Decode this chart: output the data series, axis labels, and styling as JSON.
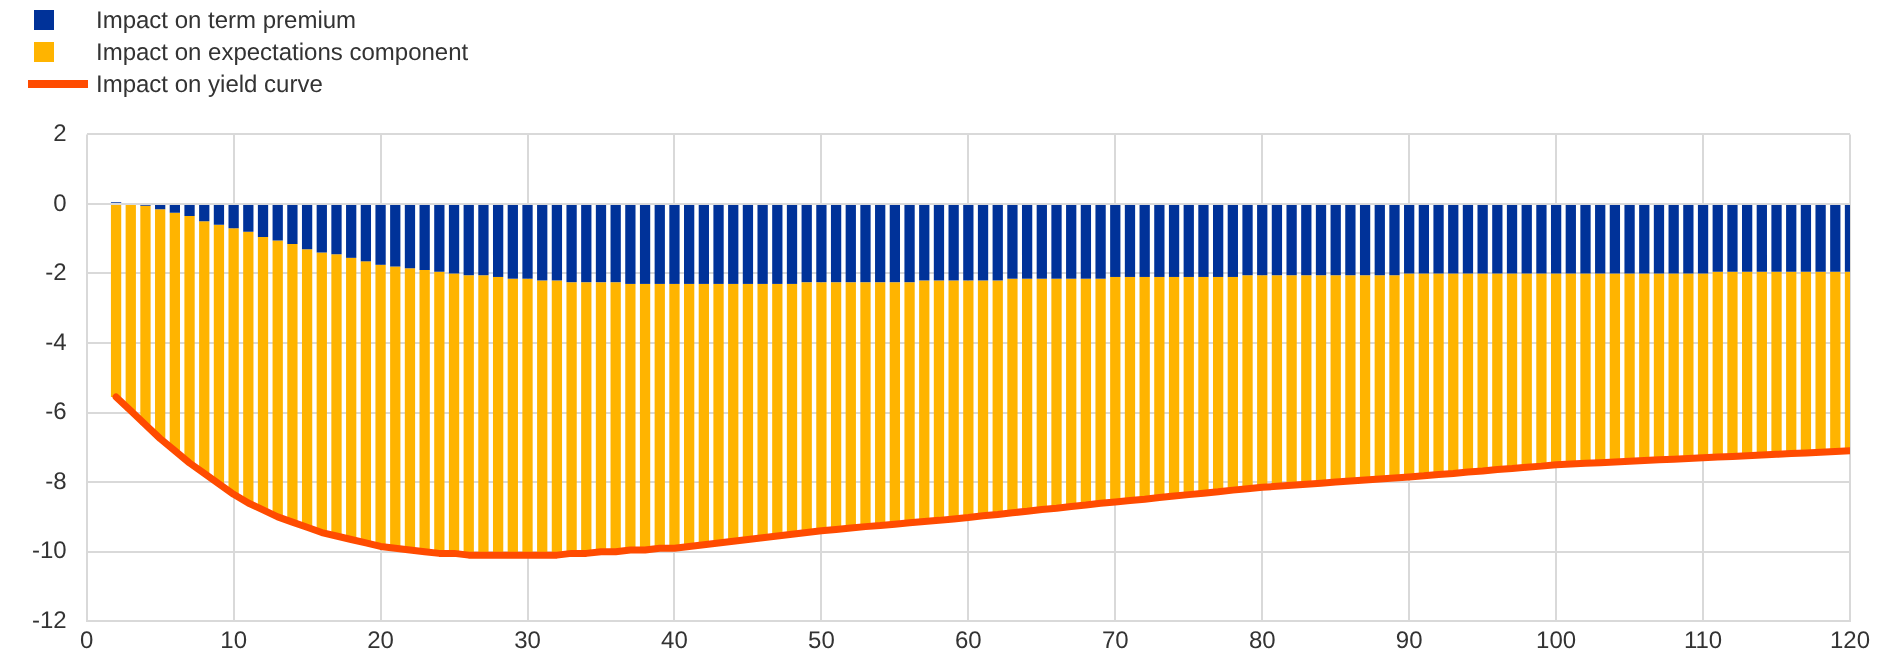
{
  "chart_data": {
    "type": "bar",
    "stacked": true,
    "legend": "top left",
    "grid": true,
    "marker": "none",
    "xlim": [
      0,
      120
    ],
    "xticks": [
      0,
      10,
      20,
      30,
      40,
      50,
      60,
      70,
      80,
      90,
      100,
      110,
      120
    ],
    "ylim": [
      -12,
      2
    ],
    "yticks": [
      -12,
      -10,
      -8,
      -6,
      -4,
      -2,
      0,
      2
    ],
    "x": [
      2,
      3,
      4,
      5,
      6,
      7,
      8,
      9,
      10,
      11,
      12,
      13,
      14,
      15,
      16,
      17,
      18,
      19,
      20,
      21,
      22,
      23,
      24,
      25,
      26,
      27,
      28,
      29,
      30,
      31,
      32,
      33,
      34,
      35,
      36,
      37,
      38,
      39,
      40,
      41,
      42,
      43,
      44,
      45,
      46,
      47,
      48,
      49,
      50,
      51,
      52,
      53,
      54,
      55,
      56,
      57,
      58,
      59,
      60,
      61,
      62,
      63,
      64,
      65,
      66,
      67,
      68,
      69,
      70,
      71,
      72,
      73,
      74,
      75,
      76,
      77,
      78,
      79,
      80,
      81,
      82,
      83,
      84,
      85,
      86,
      87,
      88,
      89,
      90,
      91,
      92,
      93,
      94,
      95,
      96,
      97,
      98,
      99,
      100,
      101,
      102,
      103,
      104,
      105,
      106,
      107,
      108,
      109,
      110,
      111,
      112,
      113,
      114,
      115,
      116,
      117,
      118,
      119,
      120
    ],
    "series": [
      {
        "name": "Impact on term premium",
        "color": "#003299",
        "values": [
          0.05,
          0,
          -0.05,
          -0.15,
          -0.25,
          -0.35,
          -0.5,
          -0.6,
          -0.7,
          -0.8,
          -0.95,
          -1.05,
          -1.15,
          -1.3,
          -1.4,
          -1.45,
          -1.55,
          -1.65,
          -1.75,
          -1.8,
          -1.85,
          -1.9,
          -1.95,
          -2.0,
          -2.05,
          -2.05,
          -2.1,
          -2.15,
          -2.15,
          -2.2,
          -2.2,
          -2.25,
          -2.25,
          -2.25,
          -2.25,
          -2.3,
          -2.3,
          -2.3,
          -2.3,
          -2.3,
          -2.3,
          -2.3,
          -2.3,
          -2.3,
          -2.3,
          -2.3,
          -2.3,
          -2.25,
          -2.25,
          -2.25,
          -2.25,
          -2.25,
          -2.25,
          -2.25,
          -2.25,
          -2.2,
          -2.2,
          -2.2,
          -2.2,
          -2.2,
          -2.2,
          -2.15,
          -2.15,
          -2.15,
          -2.15,
          -2.15,
          -2.15,
          -2.15,
          -2.1,
          -2.1,
          -2.1,
          -2.1,
          -2.1,
          -2.1,
          -2.1,
          -2.1,
          -2.1,
          -2.05,
          -2.05,
          -2.05,
          -2.05,
          -2.05,
          -2.05,
          -2.05,
          -2.05,
          -2.05,
          -2.05,
          -2.05,
          -2.0,
          -2.0,
          -2.0,
          -2.0,
          -2.0,
          -2.0,
          -2.0,
          -2.0,
          -2.0,
          -2.0,
          -2.0,
          -2.0,
          -2.0,
          -2.0,
          -2.0,
          -2.0,
          -2.0,
          -2.0,
          -2.0,
          -2.0,
          -2.0,
          -1.95,
          -1.95,
          -1.95,
          -1.95,
          -1.95,
          -1.95,
          -1.95,
          -1.95,
          -1.95,
          -1.95
        ]
      },
      {
        "name": "Impact on expectations component",
        "color": "#ffb400",
        "values": [
          -5.55,
          -5.95,
          -6.3,
          -6.6,
          -6.85,
          -7.1,
          -7.25,
          -7.45,
          -7.65,
          -7.8,
          -7.85,
          -7.95,
          -8.0,
          -8.0,
          -8.05,
          -8.1,
          -8.1,
          -8.1,
          -8.1,
          -8.1,
          -8.1,
          -8.1,
          -8.1,
          -8.05,
          -8.05,
          -8.05,
          -8.0,
          -7.95,
          -7.95,
          -7.9,
          -7.9,
          -7.8,
          -7.8,
          -7.75,
          -7.75,
          -7.65,
          -7.65,
          -7.6,
          -7.6,
          -7.55,
          -7.5,
          -7.45,
          -7.4,
          -7.35,
          -7.3,
          -7.25,
          -7.2,
          -7.2,
          -7.15,
          -7.11,
          -7.07,
          -7.03,
          -7.0,
          -6.96,
          -6.92,
          -6.93,
          -6.9,
          -6.86,
          -6.82,
          -6.77,
          -6.73,
          -6.73,
          -6.69,
          -6.64,
          -6.6,
          -6.55,
          -6.51,
          -6.46,
          -6.47,
          -6.43,
          -6.39,
          -6.34,
          -6.3,
          -6.26,
          -6.22,
          -6.18,
          -6.13,
          -6.14,
          -6.1,
          -6.07,
          -6.04,
          -6.01,
          -5.98,
          -5.95,
          -5.92,
          -5.89,
          -5.86,
          -5.83,
          -5.85,
          -5.82,
          -5.78,
          -5.75,
          -5.71,
          -5.68,
          -5.64,
          -5.61,
          -5.57,
          -5.54,
          -5.5,
          -5.48,
          -5.46,
          -5.44,
          -5.42,
          -5.4,
          -5.38,
          -5.36,
          -5.34,
          -5.32,
          -5.3,
          -5.33,
          -5.31,
          -5.29,
          -5.27,
          -5.25,
          -5.23,
          -5.21,
          -5.19,
          -5.17,
          -5.15
        ]
      },
      {
        "name": "Impact on yield curve",
        "type": "line",
        "color": "#ff4b00",
        "values": [
          -5.55,
          -5.95,
          -6.35,
          -6.75,
          -7.1,
          -7.45,
          -7.75,
          -8.05,
          -8.35,
          -8.6,
          -8.8,
          -9.0,
          -9.15,
          -9.3,
          -9.45,
          -9.55,
          -9.65,
          -9.75,
          -9.85,
          -9.9,
          -9.95,
          -10.0,
          -10.05,
          -10.05,
          -10.1,
          -10.1,
          -10.1,
          -10.1,
          -10.1,
          -10.1,
          -10.1,
          -10.05,
          -10.05,
          -10.0,
          -10.0,
          -9.95,
          -9.95,
          -9.9,
          -9.9,
          -9.85,
          -9.8,
          -9.75,
          -9.7,
          -9.65,
          -9.6,
          -9.55,
          -9.5,
          -9.45,
          -9.4,
          -9.36,
          -9.32,
          -9.28,
          -9.25,
          -9.21,
          -9.17,
          -9.13,
          -9.1,
          -9.06,
          -9.02,
          -8.97,
          -8.93,
          -8.88,
          -8.84,
          -8.79,
          -8.75,
          -8.7,
          -8.66,
          -8.61,
          -8.57,
          -8.53,
          -8.49,
          -8.44,
          -8.4,
          -8.36,
          -8.32,
          -8.28,
          -8.23,
          -8.19,
          -8.15,
          -8.12,
          -8.09,
          -8.06,
          -8.03,
          -8.0,
          -7.97,
          -7.94,
          -7.91,
          -7.88,
          -7.85,
          -7.82,
          -7.78,
          -7.75,
          -7.71,
          -7.68,
          -7.64,
          -7.61,
          -7.57,
          -7.54,
          -7.5,
          -7.48,
          -7.46,
          -7.44,
          -7.42,
          -7.4,
          -7.38,
          -7.36,
          -7.34,
          -7.32,
          -7.3,
          -7.28,
          -7.26,
          -7.24,
          -7.22,
          -7.2,
          -7.18,
          -7.16,
          -7.14,
          -7.12,
          -7.1
        ]
      }
    ]
  }
}
